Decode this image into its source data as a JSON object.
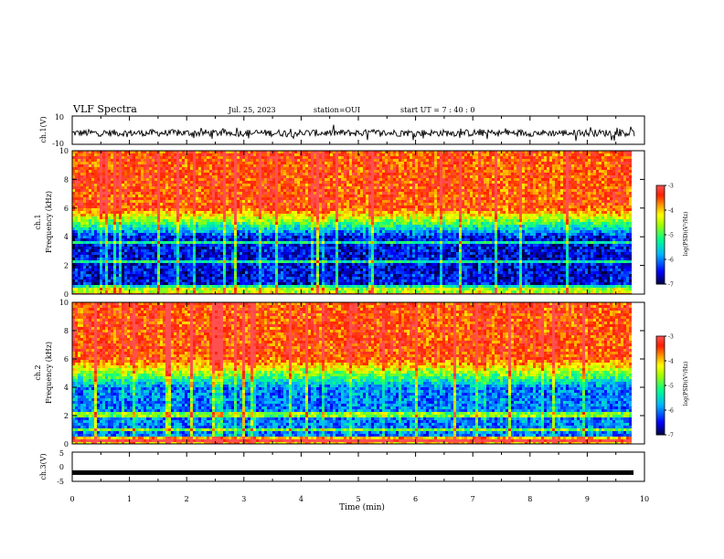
{
  "header": {
    "title": "VLF Spectra",
    "date": "Jul. 25, 2023",
    "station": "station=OUI",
    "start_ut": "start UT =  7 : 40 : 0"
  },
  "chart_data": [
    {
      "type": "line",
      "panel": "ch1-waveform",
      "ylabel": "ch.1(V)",
      "ylim": [
        -10,
        10
      ],
      "yticks": [
        "10",
        "-10"
      ],
      "x_range_min": [
        0,
        9.83
      ],
      "series": [
        {
          "values_summary": "noise centred near -2 V, mostly between -6 and 2 V"
        }
      ]
    },
    {
      "type": "heatmap",
      "panel": "ch1-spectrogram",
      "ylabel_line1": "ch.1",
      "ylabel_line2": "Frequency (kHz)",
      "ylim": [
        0,
        10
      ],
      "yticks": [
        "0",
        "2",
        "4",
        "6",
        "8",
        "10"
      ],
      "colorbar": {
        "label": "log(PSD)(V²/Hz)",
        "range": [
          -7,
          -3
        ],
        "ticks": [
          "-3",
          "-4",
          "-5",
          "-6",
          "-7"
        ]
      },
      "description_values": {
        "low_freq_below_4kHz": -6.5,
        "mid_4_to_6kHz": -5,
        "high_above_6kHz": -3.5
      }
    },
    {
      "type": "heatmap",
      "panel": "ch2-spectrogram",
      "ylabel_line1": "ch.2",
      "ylabel_line2": "Frequency (kHz)",
      "ylim": [
        0,
        10
      ],
      "yticks": [
        "0",
        "2",
        "4",
        "6",
        "8",
        "10"
      ],
      "colorbar": {
        "label": "log(PSD)(V²/Hz)",
        "range": [
          -7,
          -3
        ],
        "ticks": [
          "-3",
          "-4",
          "-5",
          "-6",
          "-7"
        ]
      },
      "description_values": {
        "low_freq_below_4kHz": -6,
        "mid_4_to_6kHz": -5,
        "high_above_6kHz": -3.5
      }
    },
    {
      "type": "line",
      "panel": "ch3-waveform",
      "ylabel": "ch.3(V)",
      "ylim": [
        -5,
        5
      ],
      "yticks": [
        "5",
        "0",
        "-5"
      ],
      "series": [
        {
          "constant_value": -2
        }
      ]
    }
  ],
  "xaxis": {
    "label": "Time (min)",
    "ticks": [
      "0",
      "1",
      "2",
      "3",
      "4",
      "5",
      "6",
      "7",
      "8",
      "9",
      "10"
    ],
    "range": [
      0,
      10
    ]
  },
  "colors": {
    "scale": [
      "#000040",
      "#0000ff",
      "#00c0ff",
      "#00ff80",
      "#ffff00",
      "#ff8000",
      "#ff0000",
      "#ffffff"
    ]
  }
}
